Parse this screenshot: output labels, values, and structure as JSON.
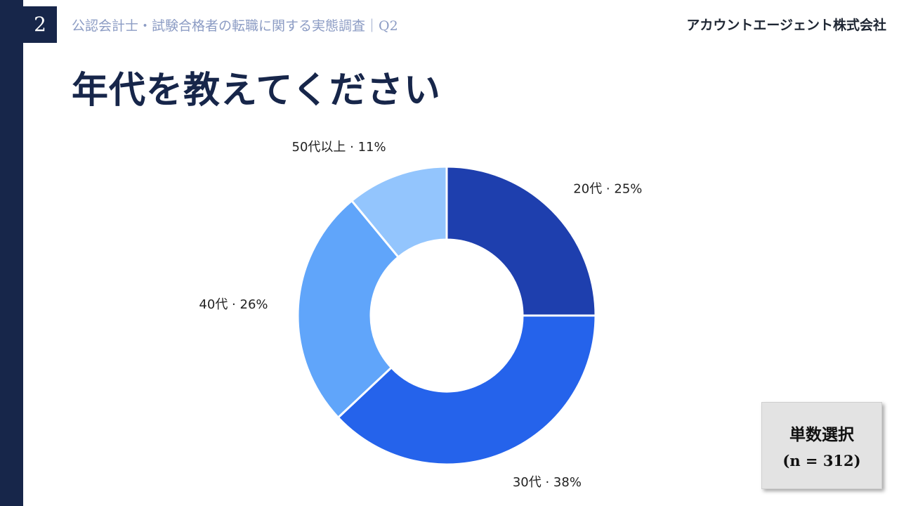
{
  "header": {
    "page_number": "2",
    "subtitle": "公認会計士・試験合格者の転職に関する実態調査｜Q2",
    "company": "アカウントエージェント株式会社"
  },
  "title": "年代を教えてください",
  "method": {
    "label": "単数選択",
    "n": "(n = 312)"
  },
  "chart_data": {
    "type": "pie",
    "donut": true,
    "title": "",
    "legend": "none",
    "slices": [
      {
        "label": "20代 · 25%",
        "category": "20代",
        "value": 25,
        "color": "#1e3fae"
      },
      {
        "label": "30代 · 38%",
        "category": "30代",
        "value": 38,
        "color": "#2563eb"
      },
      {
        "label": "40代 · 26%",
        "category": "40代",
        "value": 26,
        "color": "#60a5fa"
      },
      {
        "label": "50代以上 · 11%",
        "category": "50代以上",
        "value": 11,
        "color": "#93c5fd"
      }
    ]
  }
}
